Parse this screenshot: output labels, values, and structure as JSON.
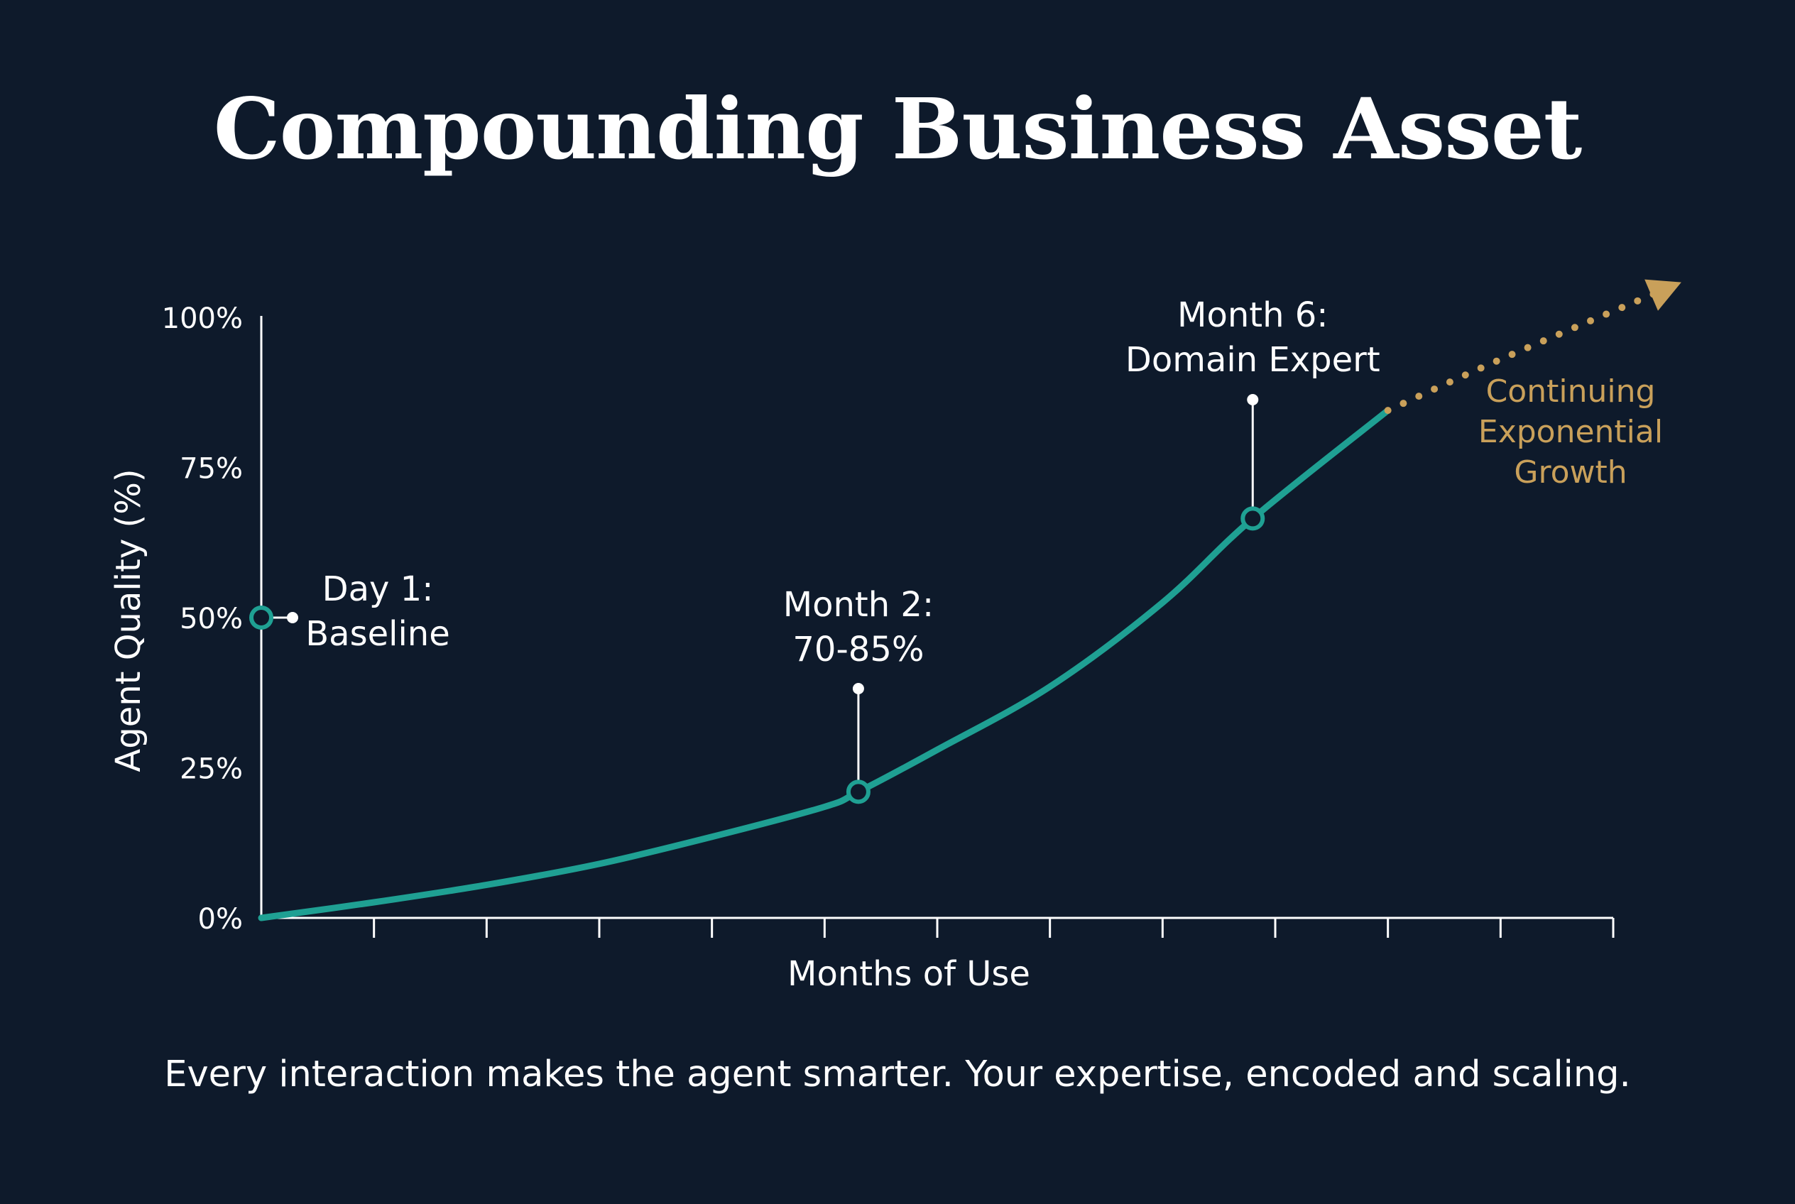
{
  "title": "Compounding Business Asset",
  "caption": "Every interaction makes the agent smarter. Your expertise, encoded and scaling.",
  "colors": {
    "background": "#0e1a2b",
    "curve": "#1fa093",
    "projection": "#c9a05a",
    "axis": "#ffffff",
    "text": "#ffffff"
  },
  "chart_data": {
    "type": "line",
    "xlabel": "Months of Use",
    "ylabel": "Agent Quality (%)",
    "ylim": [
      0,
      100
    ],
    "yticks": [
      "0%",
      "25%",
      "50%",
      "75%",
      "100%"
    ],
    "xlim": [
      0,
      12
    ],
    "x_tick_count": 12,
    "grid": false,
    "series": [
      {
        "x": [
          0,
          1,
          2,
          3,
          4,
          5,
          5.3,
          6,
          7,
          8,
          8.8,
          10
        ],
        "y": [
          0,
          2.6,
          5.5,
          9,
          13.5,
          18.5,
          21,
          28,
          38.5,
          52.5,
          66.5,
          84.5
        ]
      }
    ],
    "projection": {
      "label": [
        "Continuing",
        "Exponential",
        "Growth"
      ],
      "x": [
        10,
        11,
        12.5
      ],
      "y": [
        84.5,
        93,
        105
      ]
    },
    "annotations": [
      {
        "lines": [
          "Day 1:",
          "Baseline"
        ],
        "x": 0,
        "y": 50
      },
      {
        "lines": [
          "Month 2:",
          "70-85%"
        ],
        "x": 5.3,
        "y": 21
      },
      {
        "lines": [
          "Month 6:",
          "Domain Expert"
        ],
        "x": 8.8,
        "y": 66.5
      }
    ]
  }
}
